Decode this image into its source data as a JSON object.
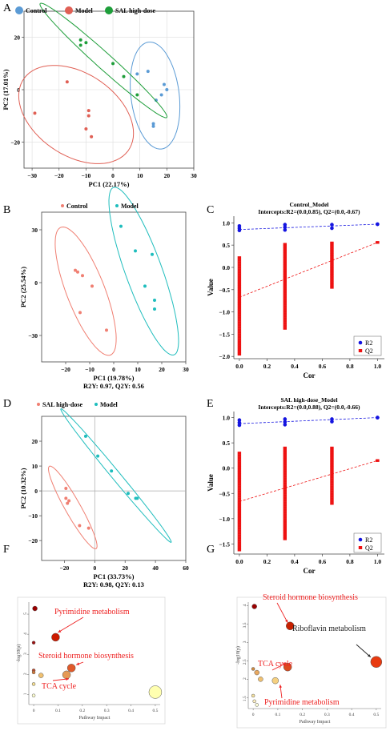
{
  "chart_data": [
    {
      "panel": "A",
      "type": "scatter",
      "xlabel": "PC1 (22.17%)",
      "ylabel": "PC2 (17.01%)",
      "xlim": [
        -33,
        30
      ],
      "ylim": [
        -30,
        30
      ],
      "xticks": [
        -30,
        -20,
        -10,
        0,
        10,
        20,
        30
      ],
      "yticks": [
        -20,
        0,
        20
      ],
      "legend": "top",
      "grid": true,
      "series": [
        {
          "name": "Control",
          "color": "#5b9bd5",
          "points": [
            [
              9,
              6
            ],
            [
              13,
              7
            ],
            [
              16,
              -4
            ],
            [
              18,
              -2
            ],
            [
              19,
              2
            ],
            [
              20,
              0
            ],
            [
              15,
              -13
            ],
            [
              15,
              -14
            ]
          ]
        },
        {
          "name": "Model",
          "color": "#e06055",
          "points": [
            [
              -29,
              -9
            ],
            [
              -17,
              3
            ],
            [
              -9,
              -8
            ],
            [
              -9,
              -10
            ],
            [
              -10,
              -15
            ],
            [
              -8,
              -18
            ]
          ]
        },
        {
          "name": "SAL high-dose",
          "color": "#1e9e3a",
          "points": [
            [
              -12,
              19
            ],
            [
              -12,
              17
            ],
            [
              -10,
              18
            ],
            [
              0,
              10
            ],
            [
              4,
              5
            ],
            [
              9,
              -2
            ]
          ]
        }
      ]
    },
    {
      "panel": "B",
      "type": "scatter",
      "xlabel": "PC1 (19.78%)",
      "ylabel": "PC2 (25.54%)",
      "note": "R2Y: 0.97, Q2Y: 0.56",
      "xlim": [
        -30,
        30
      ],
      "ylim": [
        -45,
        40
      ],
      "xticks": [
        -20,
        -10,
        0,
        10,
        20,
        30
      ],
      "yticks": [
        -30,
        0,
        30
      ],
      "legend": "top",
      "series": [
        {
          "name": "Control",
          "color": "#f07f72",
          "points": [
            [
              -16,
              7
            ],
            [
              -15,
              6
            ],
            [
              -13,
              4
            ],
            [
              -9,
              -2
            ],
            [
              -14,
              -17
            ],
            [
              -3,
              -27
            ]
          ]
        },
        {
          "name": "Model",
          "color": "#1fbdbd",
          "points": [
            [
              3,
              32
            ],
            [
              9,
              18
            ],
            [
              16,
              16
            ],
            [
              13,
              -2
            ],
            [
              17,
              -10
            ],
            [
              17,
              -15
            ]
          ]
        }
      ]
    },
    {
      "panel": "C",
      "type": "scatter",
      "title": "Control_Model",
      "subtitle": "Intercepts:R2=(0.0,0.85), Q2=(0.0,-0.67)",
      "xlabel": "Cor",
      "ylabel": "Value",
      "xlim": [
        -0.04,
        1.05
      ],
      "ylim": [
        -2.05,
        1.15
      ],
      "xticks": [
        0.0,
        0.2,
        0.4,
        0.6,
        0.8,
        1.0
      ],
      "yticks": [
        1.0,
        0.5,
        0.0,
        -0.5,
        -1.0,
        -1.5,
        -2.0
      ],
      "legend": "bottom-right",
      "series": [
        {
          "name": "R2",
          "color": "#1414e0",
          "groups": [
            {
              "x": 0.0,
              "min": 0.83,
              "max": 0.93
            },
            {
              "x": 0.33,
              "min": 0.84,
              "max": 0.96
            },
            {
              "x": 0.67,
              "min": 0.88,
              "max": 0.96
            },
            {
              "x": 1.0,
              "min": 0.97,
              "max": 0.97
            }
          ],
          "intercept": [
            0.0,
            0.85
          ]
        },
        {
          "name": "Q2",
          "color": "#ee1111",
          "groups": [
            {
              "x": 0.0,
              "min": -1.95,
              "max": 0.22
            },
            {
              "x": 0.33,
              "min": -1.37,
              "max": 0.52
            },
            {
              "x": 0.67,
              "min": -0.45,
              "max": 0.55
            },
            {
              "x": 1.0,
              "min": 0.56,
              "max": 0.56
            }
          ],
          "intercept": [
            0.0,
            -0.67
          ]
        }
      ]
    },
    {
      "panel": "D",
      "type": "scatter",
      "xlabel": "PC1 (33.73%)",
      "ylabel": "PC2 (10.32%)",
      "note": "R2Y: 0.98, Q2Y: 0.13",
      "xlim": [
        -35,
        60
      ],
      "ylim": [
        -28,
        30
      ],
      "xticks": [
        -20,
        0,
        20,
        40,
        60
      ],
      "yticks": [
        -20,
        -10,
        0,
        10,
        20
      ],
      "legend": "top",
      "series": [
        {
          "name": "SAL high-dose",
          "color": "#f07f72",
          "points": [
            [
              -19,
              1
            ],
            [
              -19,
              -3
            ],
            [
              -18,
              -5
            ],
            [
              -17,
              -4
            ],
            [
              -10,
              -14
            ],
            [
              -4,
              -15
            ]
          ]
        },
        {
          "name": "Model",
          "color": "#1fbdbd",
          "points": [
            [
              -6,
              22
            ],
            [
              2,
              14
            ],
            [
              11,
              8
            ],
            [
              22,
              -1
            ],
            [
              27,
              -3
            ],
            [
              28,
              -3
            ]
          ]
        }
      ]
    },
    {
      "panel": "E",
      "type": "scatter",
      "title": "SAL high-dose_Model",
      "subtitle": "Intercepts:R2=(0.0,0.88), Q2=(0.0,-0.66)",
      "xlabel": "Cor",
      "ylabel": "Value",
      "xlim": [
        -0.04,
        1.05
      ],
      "ylim": [
        -1.7,
        1.12
      ],
      "xticks": [
        0.0,
        0.2,
        0.4,
        0.6,
        0.8,
        1.0
      ],
      "yticks": [
        1.0,
        0.5,
        0.0,
        -0.5,
        -1.0,
        -1.5
      ],
      "legend": "bottom-right",
      "series": [
        {
          "name": "R2",
          "color": "#1414e0",
          "groups": [
            {
              "x": 0.0,
              "min": 0.85,
              "max": 0.95
            },
            {
              "x": 0.33,
              "min": 0.86,
              "max": 0.97
            },
            {
              "x": 0.67,
              "min": 0.92,
              "max": 0.97
            },
            {
              "x": 1.0,
              "min": 1.0,
              "max": 1.0
            }
          ],
          "intercept": [
            0.0,
            0.88
          ]
        },
        {
          "name": "Q2",
          "color": "#ee1111",
          "groups": [
            {
              "x": 0.0,
              "min": -1.62,
              "max": 0.3
            },
            {
              "x": 0.33,
              "min": -1.4,
              "max": 0.4
            },
            {
              "x": 0.67,
              "min": -0.7,
              "max": 0.4
            },
            {
              "x": 1.0,
              "min": 0.15,
              "max": 0.15
            }
          ],
          "intercept": [
            0.0,
            -0.66
          ]
        }
      ]
    },
    {
      "panel": "F",
      "type": "scatter",
      "xlabel": "Pathway Impact",
      "ylabel": "-log10(p)",
      "xlim": [
        -0.02,
        0.52
      ],
      "ylim": [
        0.5,
        5.6
      ],
      "xticks": [
        0.0,
        0.1,
        0.2,
        0.3,
        0.4,
        0.5
      ],
      "yticks": [
        1,
        2,
        3,
        4,
        5
      ],
      "points": [
        {
          "x": 0.005,
          "y": 5.28,
          "r": 3,
          "color": "#9a0000"
        },
        {
          "x": 0.0,
          "y": 3.58,
          "r": 2,
          "color": "#a01010"
        },
        {
          "x": 0.09,
          "y": 3.85,
          "r": 5,
          "color": "#cc1a00"
        },
        {
          "x": 0.0,
          "y": 2.2,
          "r": 2,
          "color": "#c24a2a"
        },
        {
          "x": 0.0,
          "y": 2.1,
          "r": 2,
          "color": "#d57a3a"
        },
        {
          "x": 0.155,
          "y": 2.32,
          "r": 5,
          "color": "#e05a2a"
        },
        {
          "x": 0.135,
          "y": 1.98,
          "r": 5,
          "color": "#e59a55"
        },
        {
          "x": 0.03,
          "y": 1.95,
          "r": 3,
          "color": "#f0c070"
        },
        {
          "x": 0.0,
          "y": 1.52,
          "r": 2,
          "color": "#f5df90"
        },
        {
          "x": 0.5,
          "y": 1.12,
          "r": 8,
          "color": "#ffffb0"
        },
        {
          "x": 0.0,
          "y": 0.95,
          "r": 2,
          "color": "#ffffd0"
        }
      ],
      "annotations": [
        {
          "text": "Pyrimidine metabolism",
          "color": "#ee2222",
          "target": [
            0.09,
            3.85
          ]
        },
        {
          "text": "Steroid hormone biosynthesis",
          "color": "#ee2222",
          "target": [
            0.155,
            2.32
          ]
        },
        {
          "text": "TCA cycle",
          "color": "#ee2222",
          "target": [
            0.135,
            1.98
          ]
        }
      ]
    },
    {
      "panel": "G",
      "type": "scatter",
      "xlabel": "Pathway Impact",
      "ylabel": "-log10(p)",
      "xlim": [
        -0.02,
        0.52
      ],
      "ylim": [
        1.2,
        4.1
      ],
      "xticks": [
        0.0,
        0.1,
        0.2,
        0.3,
        0.4,
        0.5
      ],
      "yticks": [
        1.5,
        2.0,
        2.5,
        3.0,
        3.5,
        4.0
      ],
      "points": [
        {
          "x": 0.005,
          "y": 3.98,
          "r": 3,
          "color": "#9a0000"
        },
        {
          "x": 0.15,
          "y": 3.45,
          "r": 5,
          "color": "#c82000"
        },
        {
          "x": 0.5,
          "y": 2.47,
          "r": 7,
          "color": "#e83a10"
        },
        {
          "x": 0.14,
          "y": 2.33,
          "r": 5,
          "color": "#dd4a1f"
        },
        {
          "x": 0.0,
          "y": 2.28,
          "r": 2,
          "color": "#d08a40"
        },
        {
          "x": 0.015,
          "y": 2.18,
          "r": 3,
          "color": "#e8a860"
        },
        {
          "x": 0.03,
          "y": 2.0,
          "r": 3,
          "color": "#f0c070"
        },
        {
          "x": 0.09,
          "y": 1.96,
          "r": 4,
          "color": "#f5d080"
        },
        {
          "x": 0.0,
          "y": 1.55,
          "r": 2,
          "color": "#f8e4a0"
        },
        {
          "x": 0.005,
          "y": 1.4,
          "r": 2,
          "color": "#fff0c0"
        },
        {
          "x": 0.015,
          "y": 1.3,
          "r": 2,
          "color": "#ffffd8"
        }
      ],
      "annotations": [
        {
          "text": "Steroid hormone biosynthesis",
          "color": "#ee2222",
          "target": [
            0.15,
            3.45
          ]
        },
        {
          "text": "Riboflavin metabolism",
          "color": "#222222",
          "target": [
            0.5,
            2.47
          ]
        },
        {
          "text": "TCA cycle",
          "color": "#ee2222",
          "target": [
            0.14,
            2.33
          ]
        },
        {
          "text": "Pyrimidine metabolism",
          "color": "#ee2222",
          "target": [
            0.09,
            1.96
          ]
        }
      ]
    }
  ]
}
